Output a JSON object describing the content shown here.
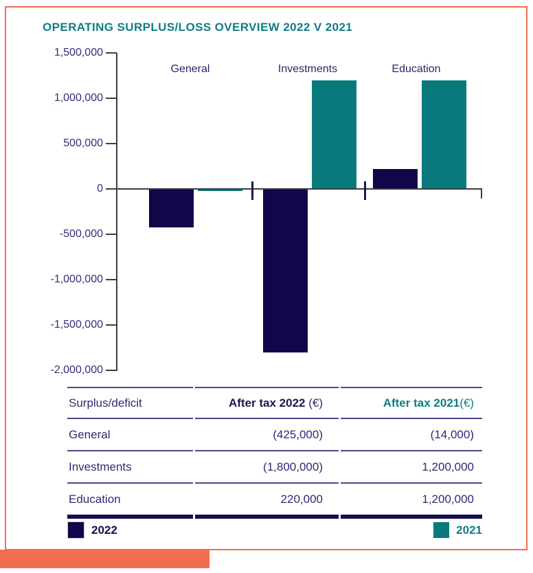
{
  "page": {
    "border_color": "#f26c50",
    "accent_bar_color": "#f26c50"
  },
  "chart_data": {
    "type": "bar",
    "title": "OPERATING SURPLUS/LOSS OVERVIEW 2022 V 2021",
    "title_color": "#117c86",
    "categories": [
      "General",
      "Investments",
      "Education"
    ],
    "series": [
      {
        "name": "2022",
        "color": "#120549",
        "values": [
          -425000,
          -1800000,
          220000
        ]
      },
      {
        "name": "2021",
        "color": "#087a7e",
        "values": [
          -14000,
          1200000,
          1200000
        ]
      }
    ],
    "ylim": [
      -2000000,
      1500000
    ],
    "ytick_interval": 500000,
    "ytick_labels": [
      "1,500,000",
      "1,000,000",
      "500,000",
      "0",
      "-500,000",
      "-1,000,000",
      "-1,500,000",
      "-2,000,000"
    ],
    "grid": false,
    "legend_position": "bottom"
  },
  "table": {
    "headers": {
      "col1": "Surplus/deficit",
      "col2_bold": "After tax 2022",
      "col2_suffix": " (€)",
      "col3_bold": "After tax 2021",
      "col3_suffix": "(€)"
    },
    "rows": [
      {
        "category": "General",
        "after_tax_2022": "(425,000)",
        "after_tax_2021": "(14,000)"
      },
      {
        "category": "Investments",
        "after_tax_2022": "(1,800,000)",
        "after_tax_2021": "1,200,000"
      },
      {
        "category": "Education",
        "after_tax_2022": "220,000",
        "after_tax_2021": "1,200,000"
      }
    ]
  },
  "legend": {
    "items": [
      {
        "label": "2022",
        "color": "#120549",
        "text_color": "#140d4e"
      },
      {
        "label": "2021",
        "color": "#087a7e",
        "text_color": "#0d7f82"
      }
    ]
  }
}
